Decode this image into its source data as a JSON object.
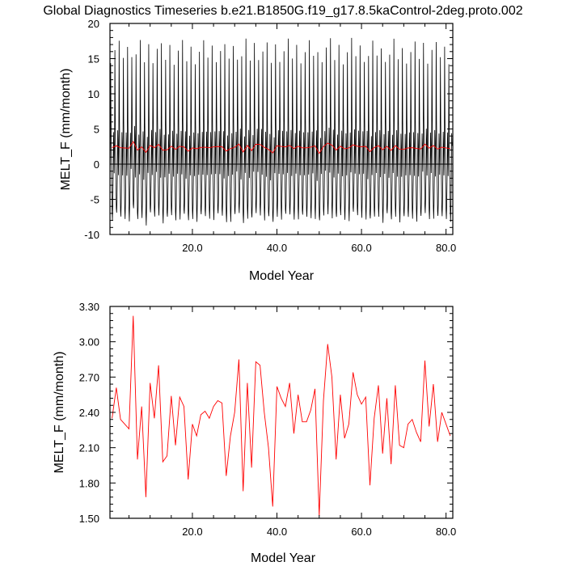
{
  "title": "Global Diagnostics Timeseries b.e21.B1850G.f19_g17.8.5kaControl-2deg.proto.002",
  "chart_data": [
    {
      "type": "line",
      "xlabel": "Model Year",
      "ylabel": "MELT_F (mm/month)",
      "xlim": [
        0.5,
        81.6
      ],
      "ylim": [
        -10,
        20
      ],
      "xticks": [
        20,
        40,
        60,
        80
      ],
      "xtick_labels": [
        "20.0",
        "40.0",
        "60.0",
        "80.0"
      ],
      "yticks": [
        -10,
        -5,
        0,
        5,
        10,
        15,
        20
      ],
      "ytick_labels": [
        "-10",
        "-5",
        "0",
        "5",
        "10",
        "15",
        "20"
      ],
      "zero_line": true,
      "series": [
        {
          "color": "#000000",
          "kind": "monthly",
          "x": [
            0.5,
            81.5
          ],
          "note_shape": "seasonal oscillation between about -8 and 16"
        },
        {
          "color": "#ff0000",
          "kind": "annual_mean",
          "x": [
            1,
            2,
            3,
            4,
            5,
            6,
            7,
            8,
            9,
            10,
            11,
            12,
            13,
            14,
            15,
            16,
            17,
            18,
            19,
            20,
            21,
            22,
            23,
            24,
            25,
            26,
            27,
            28,
            29,
            30,
            31,
            32,
            33,
            34,
            35,
            36,
            37,
            38,
            39,
            40,
            41,
            42,
            43,
            44,
            45,
            46,
            47,
            48,
            49,
            50,
            51,
            52,
            53,
            54,
            55,
            56,
            57,
            58,
            59,
            60,
            61,
            62,
            63,
            64,
            65,
            66,
            67,
            68,
            69,
            70,
            71,
            72,
            73,
            74,
            75,
            76,
            77,
            78,
            79,
            80,
            81
          ],
          "values": [
            2.35,
            2.61,
            2.34,
            2.3,
            2.26,
            3.22,
            2.0,
            2.45,
            1.68,
            2.65,
            2.35,
            2.8,
            1.98,
            2.03,
            2.54,
            2.12,
            2.53,
            2.45,
            1.83,
            2.3,
            2.2,
            2.38,
            2.41,
            2.35,
            2.45,
            2.5,
            2.48,
            1.86,
            2.2,
            2.4,
            2.85,
            1.73,
            2.65,
            1.93,
            2.83,
            2.8,
            2.4,
            2.1,
            1.6,
            2.62,
            2.52,
            2.45,
            2.65,
            2.22,
            2.55,
            2.32,
            2.32,
            2.42,
            2.6,
            1.52,
            2.5,
            2.98,
            2.7,
            2.0,
            2.55,
            2.18,
            2.3,
            2.74,
            2.55,
            2.47,
            2.53,
            1.78,
            2.35,
            2.63,
            2.05,
            2.52,
            1.96,
            2.63,
            2.12,
            2.1,
            2.3,
            2.34,
            2.23,
            2.15,
            2.84,
            2.28,
            2.64,
            2.15,
            2.4,
            2.3,
            2.2
          ]
        }
      ]
    },
    {
      "type": "line",
      "xlabel": "Model Year",
      "ylabel": "MELT_F (mm/month)",
      "xlim": [
        0.5,
        81.6
      ],
      "ylim": [
        1.5,
        3.3
      ],
      "xticks": [
        20,
        40,
        60,
        80
      ],
      "xtick_labels": [
        "20.0",
        "40.0",
        "60.0",
        "80.0"
      ],
      "yticks": [
        1.5,
        1.8,
        2.1,
        2.4,
        2.7,
        3.0,
        3.3
      ],
      "ytick_labels": [
        "1.50",
        "1.80",
        "2.10",
        "2.40",
        "2.70",
        "3.00",
        "3.30"
      ],
      "series": [
        {
          "color": "#ff0000",
          "kind": "annual_mean",
          "x": [
            1,
            2,
            3,
            4,
            5,
            6,
            7,
            8,
            9,
            10,
            11,
            12,
            13,
            14,
            15,
            16,
            17,
            18,
            19,
            20,
            21,
            22,
            23,
            24,
            25,
            26,
            27,
            28,
            29,
            30,
            31,
            32,
            33,
            34,
            35,
            36,
            37,
            38,
            39,
            40,
            41,
            42,
            43,
            44,
            45,
            46,
            47,
            48,
            49,
            50,
            51,
            52,
            53,
            54,
            55,
            56,
            57,
            58,
            59,
            60,
            61,
            62,
            63,
            64,
            65,
            66,
            67,
            68,
            69,
            70,
            71,
            72,
            73,
            74,
            75,
            76,
            77,
            78,
            79,
            80,
            81
          ],
          "values": [
            2.35,
            2.61,
            2.34,
            2.3,
            2.26,
            3.22,
            2.0,
            2.45,
            1.68,
            2.65,
            2.35,
            2.8,
            1.98,
            2.03,
            2.54,
            2.12,
            2.53,
            2.45,
            1.83,
            2.3,
            2.2,
            2.38,
            2.41,
            2.35,
            2.45,
            2.5,
            2.48,
            1.86,
            2.2,
            2.4,
            2.85,
            1.73,
            2.65,
            1.93,
            2.83,
            2.8,
            2.4,
            2.1,
            1.6,
            2.62,
            2.52,
            2.45,
            2.65,
            2.22,
            2.55,
            2.32,
            2.32,
            2.42,
            2.6,
            1.52,
            2.5,
            2.98,
            2.7,
            2.0,
            2.55,
            2.18,
            2.3,
            2.74,
            2.55,
            2.47,
            2.53,
            1.78,
            2.35,
            2.63,
            2.05,
            2.52,
            1.96,
            2.63,
            2.12,
            2.1,
            2.3,
            2.34,
            2.23,
            2.15,
            2.84,
            2.28,
            2.64,
            2.15,
            2.4,
            2.3,
            2.2
          ]
        }
      ]
    }
  ]
}
